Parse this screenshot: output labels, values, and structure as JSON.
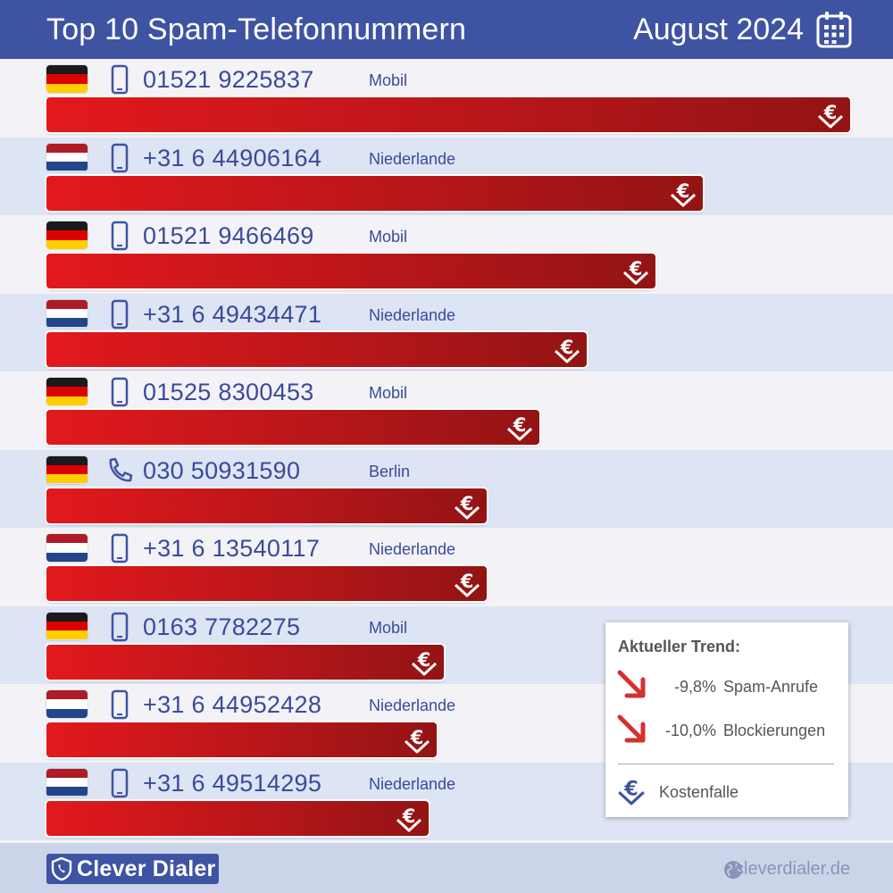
{
  "header": {
    "title": "Top 10 Spam-Telefonnummern",
    "date": "August 2024",
    "icon": "calendar-icon"
  },
  "colors": {
    "header_bg": "#3f53a3",
    "bar_start": "#e3191c",
    "bar_end": "#931414",
    "text_blue": "#3b4a9a",
    "trend_arrow": "#d43030"
  },
  "chart_data": {
    "type": "bar",
    "orientation": "horizontal",
    "categories": [
      "01521 9225837",
      "+31 6 44906164",
      "01521 9466469",
      "+31 6 49434471",
      "01525 8300453",
      "030 50931590",
      "+31 6 13540117",
      "0163 7782275",
      "+31 6 44952428",
      "+31 6 49514295"
    ],
    "values": [
      100,
      81.7,
      75.8,
      67.2,
      61.3,
      54.8,
      54.8,
      49.4,
      48.5,
      47.6
    ],
    "items": [
      {
        "rank": 1,
        "number": "01521 9225837",
        "country": "de",
        "type": "mobile",
        "label": "Mobil",
        "value": 100
      },
      {
        "rank": 2,
        "number": "+31 6 44906164",
        "country": "nl",
        "type": "mobile",
        "label": "Niederlande",
        "value": 81.7
      },
      {
        "rank": 3,
        "number": "01521 9466469",
        "country": "de",
        "type": "mobile",
        "label": "Mobil",
        "value": 75.8
      },
      {
        "rank": 4,
        "number": "+31 6 49434471",
        "country": "nl",
        "type": "mobile",
        "label": "Niederlande",
        "value": 67.2
      },
      {
        "rank": 5,
        "number": "01525 8300453",
        "country": "de",
        "type": "mobile",
        "label": "Mobil",
        "value": 61.3
      },
      {
        "rank": 6,
        "number": "030 50931590",
        "country": "de",
        "type": "landline",
        "label": "Berlin",
        "value": 54.8
      },
      {
        "rank": 7,
        "number": "+31 6 13540117",
        "country": "nl",
        "type": "mobile",
        "label": "Niederlande",
        "value": 54.8
      },
      {
        "rank": 8,
        "number": "0163 7782275",
        "country": "de",
        "type": "mobile",
        "label": "Mobil",
        "value": 49.4
      },
      {
        "rank": 9,
        "number": "+31 6 44952428",
        "country": "nl",
        "type": "mobile",
        "label": "Niederlande",
        "value": 48.5
      },
      {
        "rank": 10,
        "number": "+31 6 49514295",
        "country": "nl",
        "type": "mobile",
        "label": "Niederlande",
        "value": 47.6
      }
    ],
    "bar_icon": "euro-trap-icon"
  },
  "trend": {
    "title": "Aktueller Trend:",
    "rows": [
      {
        "value": "-9,8%",
        "label": "Spam-Anrufe",
        "icon": "arrow-down-right-icon"
      },
      {
        "value": "-10,0%",
        "label": "Blockierungen",
        "icon": "arrow-down-right-icon"
      }
    ],
    "legend_label": "Kostenfalle",
    "legend_icon": "euro-trap-icon"
  },
  "footer": {
    "brand": "Clever Dialer",
    "site": "cleverdialer.de",
    "brand_icon": "shield-phone-icon",
    "site_icon": "globe-icon"
  }
}
